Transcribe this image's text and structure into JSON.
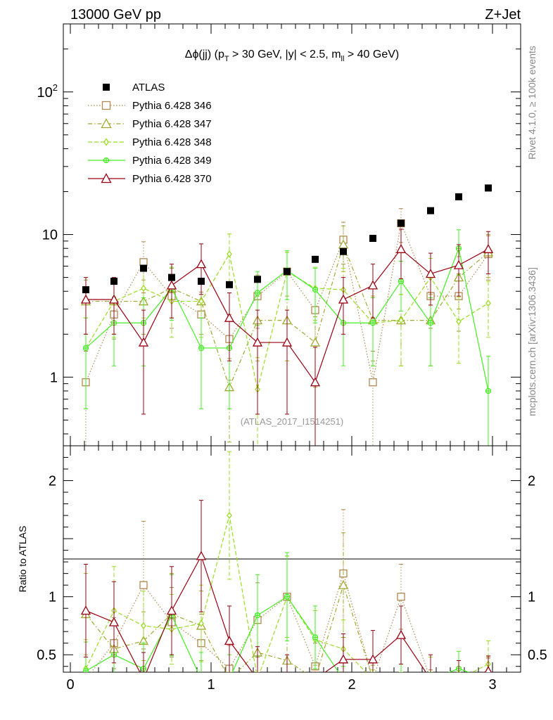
{
  "header": {
    "left": "13000 GeV pp",
    "right": "Z+Jet"
  },
  "side_text": {
    "right_top": "Rivet 4.1.0, ≥ 100k events",
    "right_bottom": "mcplots.cern.ch [arXiv:1306.3436]"
  },
  "chart_data": {
    "type": "scatter",
    "title_parts": {
      "main": "Δϕ(jj) (p",
      "sub1": "T",
      "mid": " > 30 GeV, |y| < 2.5, m",
      "sub2": "ll",
      "end": " > 40 GeV)"
    },
    "watermark": "(ATLAS_2017_I1514251)",
    "xlim": [
      -0.05,
      3.2
    ],
    "main_ylim": [
      0.33,
      300
    ],
    "main_yscale": "log",
    "main_yticks": [
      {
        "v": 1,
        "label": "1"
      },
      {
        "v": 10,
        "label": "10"
      },
      {
        "v": 100,
        "label": "10",
        "sup": "2"
      }
    ],
    "ratio_ylim": [
      0.35,
      2.3
    ],
    "ratio_ylabel": "Ratio to ATLAS",
    "ratio_yticks": [
      {
        "v": 0.5,
        "label": "0.5"
      },
      {
        "v": 1,
        "label": "1"
      },
      {
        "v": 2,
        "label": "2"
      }
    ],
    "xticks": [
      0,
      1,
      2,
      3
    ],
    "x": [
      0.11,
      0.31,
      0.52,
      0.72,
      0.93,
      1.13,
      1.33,
      1.54,
      1.74,
      1.94,
      2.15,
      2.35,
      2.56,
      2.76,
      2.97
    ],
    "legend": {
      "data_label": "ATLAS"
    },
    "data": {
      "name": "ATLAS",
      "values": [
        4.1,
        4.7,
        5.8,
        5.0,
        4.7,
        4.45,
        4.85,
        5.5,
        6.7,
        7.6,
        9.4,
        12.0,
        14.7,
        18.4,
        21.2
      ]
    },
    "series": [
      {
        "name": "Pythia 6.428 346",
        "color": "#b08850",
        "marker": "square",
        "dash": "1.5,2.5",
        "values": [
          0.92,
          2.75,
          6.4,
          3.7,
          2.75,
          1.85,
          3.7,
          5.5,
          2.95,
          9.2,
          0.92,
          12.0,
          3.7,
          3.7,
          7.3
        ],
        "errors": [
          0.6,
          0.9,
          2.5,
          1.5,
          1.2,
          0.9,
          1.5,
          2.0,
          1.2,
          3.0,
          0.6,
          3.2,
          1.5,
          1.6,
          2.5
        ],
        "ratio": [
          0.22,
          0.6,
          1.1,
          0.78,
          0.6,
          0.38,
          0.8,
          1.0,
          0.4,
          1.2,
          0.1,
          1.0,
          0.25,
          0.2,
          0.35
        ],
        "ratio_err": [
          0.12,
          0.22,
          0.55,
          0.3,
          0.25,
          0.2,
          0.32,
          0.35,
          0.2,
          0.55,
          0.08,
          0.28,
          0.12,
          0.1,
          0.12
        ]
      },
      {
        "name": "Pythia 6.428 347",
        "color": "#a0a830",
        "marker": "triangle",
        "dash": "6,3,1.5,3",
        "values": [
          3.4,
          3.4,
          3.4,
          4.2,
          3.4,
          0.85,
          2.5,
          2.5,
          1.75,
          8.5,
          2.5,
          2.5,
          2.5,
          5.0,
          7.5
        ],
        "errors": [
          1.4,
          1.4,
          1.4,
          1.6,
          1.4,
          0.5,
          1.2,
          1.2,
          0.9,
          3.0,
          1.2,
          1.3,
          1.3,
          2.0,
          2.5
        ],
        "ratio": [
          0.85,
          0.55,
          0.62,
          0.85,
          0.75,
          0.2,
          0.52,
          0.45,
          0.27,
          1.1,
          0.27,
          0.2,
          0.18,
          0.27,
          0.35
        ],
        "ratio_err": [
          0.35,
          0.25,
          0.25,
          0.35,
          0.3,
          0.12,
          0.25,
          0.2,
          0.14,
          0.45,
          0.14,
          0.1,
          0.1,
          0.12,
          0.13
        ]
      },
      {
        "name": "Pythia 6.428 348",
        "color": "#99dd22",
        "marker": "diamond",
        "dash": "6,3",
        "values": [
          1.6,
          3.4,
          4.2,
          3.4,
          3.4,
          7.3,
          0.82,
          5.5,
          4.2,
          4.1,
          2.4,
          2.5,
          5.0,
          2.45,
          3.3
        ],
        "errors": [
          1.0,
          1.5,
          1.6,
          1.5,
          1.5,
          2.8,
          0.55,
          2.0,
          1.7,
          1.7,
          1.2,
          1.3,
          1.8,
          1.2,
          1.4
        ],
        "ratio": [
          0.38,
          0.88,
          0.75,
          0.72,
          0.77,
          1.7,
          0.17,
          1.0,
          0.63,
          0.55,
          0.25,
          0.2,
          0.33,
          0.13,
          0.42
        ],
        "ratio_err": [
          0.25,
          0.38,
          0.3,
          0.3,
          0.33,
          0.55,
          0.1,
          0.35,
          0.25,
          0.25,
          0.12,
          0.1,
          0.15,
          0.07,
          0.2
        ]
      },
      {
        "name": "Pythia 6.428 349",
        "color": "#44ee22",
        "marker": "cross",
        "dash": "",
        "values": [
          1.6,
          2.4,
          2.4,
          4.2,
          1.6,
          1.6,
          3.9,
          5.6,
          4.1,
          2.4,
          2.4,
          4.7,
          2.4,
          8.0,
          0.8
        ],
        "errors": [
          1.0,
          1.2,
          1.2,
          1.7,
          1.0,
          1.0,
          1.6,
          2.1,
          1.7,
          1.2,
          1.2,
          1.8,
          1.2,
          2.8,
          0.6
        ],
        "ratio": [
          0.36,
          0.5,
          0.38,
          0.84,
          0.32,
          0.3,
          0.84,
          1.0,
          0.65,
          0.27,
          0.22,
          0.3,
          0.18,
          0.38,
          0.04
        ],
        "ratio_err": [
          0.25,
          0.27,
          0.22,
          0.35,
          0.2,
          0.2,
          0.35,
          0.38,
          0.27,
          0.13,
          0.12,
          0.12,
          0.1,
          0.15,
          0.03
        ]
      },
      {
        "name": "Pythia 6.428 370",
        "color": "#990011",
        "marker": "triangle",
        "dash": "",
        "values": [
          3.5,
          3.5,
          1.75,
          4.4,
          6.2,
          2.6,
          1.75,
          1.75,
          0.92,
          3.5,
          4.4,
          7.9,
          5.3,
          6.1,
          7.9
        ],
        "errors": [
          1.5,
          1.5,
          1.2,
          1.8,
          2.4,
          1.3,
          1.2,
          1.2,
          0.7,
          1.5,
          1.8,
          3.0,
          2.1,
          2.4,
          2.6
        ],
        "ratio": [
          0.88,
          0.78,
          0.3,
          0.88,
          1.35,
          0.62,
          0.35,
          0.3,
          0.14,
          0.46,
          0.46,
          0.67,
          0.35,
          0.32,
          0.36
        ],
        "ratio_err": [
          0.4,
          0.35,
          0.22,
          0.38,
          0.48,
          0.3,
          0.22,
          0.2,
          0.1,
          0.22,
          0.25,
          0.25,
          0.15,
          0.13,
          0.13
        ]
      }
    ]
  }
}
